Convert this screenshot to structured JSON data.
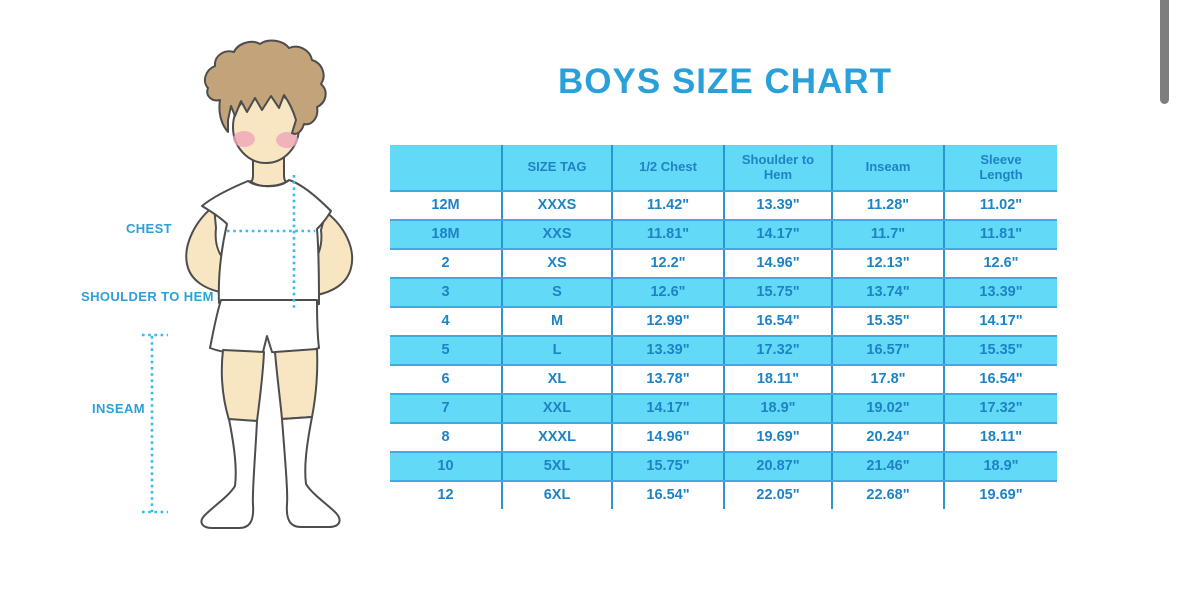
{
  "title": "BOYS SIZE CHART",
  "figure": {
    "labels": [
      {
        "text": "CHEST"
      },
      {
        "text": "SHOULDER TO HEM"
      },
      {
        "text": "INSEAM"
      }
    ]
  },
  "chart_data": {
    "type": "table",
    "title": "BOYS SIZE CHART",
    "columns": [
      "",
      "SIZE TAG",
      "1/2 Chest",
      "Shoulder to Hem",
      "Inseam",
      "Sleeve Length"
    ],
    "rows": [
      [
        "12M",
        "XXXS",
        "11.42\"",
        "13.39\"",
        "11.28\"",
        "11.02\""
      ],
      [
        "18M",
        "XXS",
        "11.81\"",
        "14.17\"",
        "11.7\"",
        "11.81\""
      ],
      [
        "2",
        "XS",
        "12.2\"",
        "14.96\"",
        "12.13\"",
        "12.6\""
      ],
      [
        "3",
        "S",
        "12.6\"",
        "15.75\"",
        "13.74\"",
        "13.39\""
      ],
      [
        "4",
        "M",
        "12.99\"",
        "16.54\"",
        "15.35\"",
        "14.17\""
      ],
      [
        "5",
        "L",
        "13.39\"",
        "17.32\"",
        "16.57\"",
        "15.35\""
      ],
      [
        "6",
        "XL",
        "13.78\"",
        "18.11\"",
        "17.8\"",
        "16.54\""
      ],
      [
        "7",
        "XXL",
        "14.17\"",
        "18.9\"",
        "19.02\"",
        "17.32\""
      ],
      [
        "8",
        "XXXL",
        "14.96\"",
        "19.69\"",
        "20.24\"",
        "18.11\""
      ],
      [
        "10",
        "5XL",
        "15.75\"",
        "20.87\"",
        "21.46\"",
        "18.9\""
      ],
      [
        "12",
        "6XL",
        "16.54\"",
        "22.05\"",
        "22.68\"",
        "19.69\""
      ]
    ],
    "units": "inches",
    "row_striping": "white/cyan alternating, header cyan"
  },
  "colors": {
    "title_blue": "#2aa0db",
    "table_fill_cyan": "#62d9f7",
    "table_text_blue": "#1e83c4",
    "grid_vertical_line": "#2b96ce",
    "grid_horizontal_line": "#3faadf",
    "label_blue": "#2d9fd9",
    "dotted_measure_line": "#35bcef",
    "hair_brown": "#c3a379",
    "skin_tone": "#f8e6c3",
    "blush_pink": "#efa6b8",
    "outline_gray": "#4d4d4d",
    "scrollbar_gray": "#7e7e7e"
  }
}
